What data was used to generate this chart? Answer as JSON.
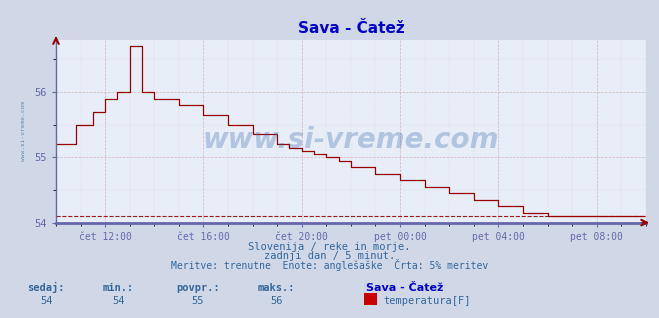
{
  "title": "Sava - Čatež",
  "title_color": "#0000cc",
  "bg_color": "#d0d8e8",
  "plot_bg_color": "#e8eef8",
  "line_color": "#990000",
  "axis_color": "#6666aa",
  "text_color": "#336699",
  "x_labels": [
    "čet 12:00",
    "čet 16:00",
    "čet 20:00",
    "pet 00:00",
    "pet 04:00",
    "pet 08:00"
  ],
  "x_ticks_positions": [
    24,
    72,
    120,
    168,
    216,
    264
  ],
  "y_min": 54.0,
  "y_max": 56.8,
  "y_ticks": [
    54,
    55,
    56
  ],
  "dashed_line_y": 54.1,
  "subtitle_line1": "Slovenija / reke in morje.",
  "subtitle_line2": "zadnji dan / 5 minut.",
  "subtitle_line3": "Meritve: trenutne  Enote: anglešaške  Črta: 5% meritev",
  "footer_labels": [
    "sedaj:",
    "min.:",
    "povpr.:",
    "maks.:"
  ],
  "footer_values": [
    "54",
    "54",
    "55",
    "56"
  ],
  "footer_series_name": "Sava - Čatež",
  "footer_series_label": "temperatura[F]",
  "watermark": "www.si-vreme.com",
  "ylabel_text": "www.si-vreme.com",
  "xlim_min": 0,
  "xlim_max": 288
}
